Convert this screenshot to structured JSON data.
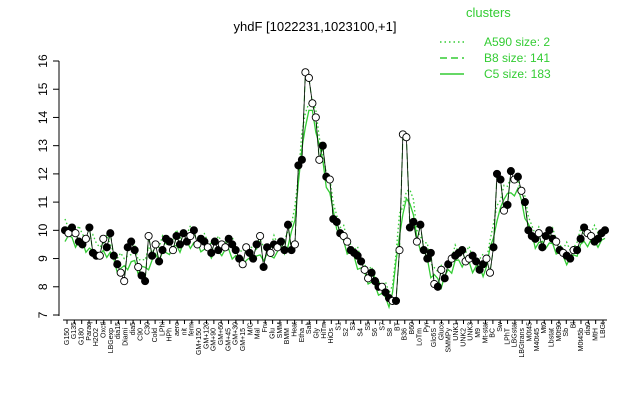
{
  "chart_data": {
    "type": "line",
    "title": "yhdF [1022231,1023100,+1]",
    "xlabel": "",
    "ylabel": "",
    "ylim": [
      7,
      16
    ],
    "yticks": [
      7,
      8,
      9,
      10,
      11,
      12,
      13,
      14,
      15,
      16
    ],
    "grid": false,
    "legend": {
      "title": "clusters",
      "position": "top-right",
      "color": "#33cc33",
      "entries": [
        {
          "label": "A590 size: 2",
          "style": "dotted"
        },
        {
          "label": "B8 size: 141",
          "style": "dashed"
        },
        {
          "label": "C5 size: 183",
          "style": "solid"
        }
      ]
    },
    "colors": {
      "cluster": "#33cc33",
      "points": "#000000"
    },
    "x_tick_labels": [
      "G150",
      "G135",
      "G180",
      "Paraq",
      "H2O2",
      "Oxctl",
      "LBGexp",
      "dia15",
      "Diami",
      "dia5",
      "C90",
      "C30",
      "Cold",
      "LPhi",
      "HPh",
      "aero",
      "nit",
      "ferm",
      "GM+150",
      "GM+120",
      "GM+90",
      "GM+60",
      "GM+45",
      "GM+30",
      "GM+15",
      "M/G",
      "Mal",
      "Fru",
      "Glu",
      "SMM",
      "BMM",
      "Heat",
      "Etha",
      "Salt",
      "Gly",
      "HiTm",
      "HiOs",
      "S1",
      "S2",
      "S3",
      "S4",
      "S5",
      "S6",
      "S7",
      "S8",
      "BT",
      "B36",
      "B60",
      "LoTm",
      "Pyr",
      "Glc6S",
      "Gluco",
      "SMMPy",
      "UNK1",
      "UNK2",
      "UNK3",
      "M9",
      "Mt-stat",
      "BC",
      "Sw",
      "LPhT",
      "LBGstat",
      "LBGtrans",
      "M0t45",
      "M40t45",
      "Mt0",
      "Lbstat",
      "M0t90",
      "Sb",
      "Bl",
      "M0t45b",
      "dia0",
      "MtH",
      "LBGt"
    ],
    "series": [
      {
        "name": "",
        "values": [
          10.0,
          9.9,
          10.1,
          9.9,
          9.6,
          9.5,
          9.7,
          10.1,
          9.2,
          9.1,
          9.1,
          9.7,
          9.4,
          9.9,
          9.1,
          8.8,
          8.5,
          8.2,
          9.4,
          9.6,
          9.3,
          8.7,
          8.4,
          8.2,
          9.8,
          9.1,
          9.5,
          8.9,
          9.3,
          9.7,
          9.6,
          9.3,
          9.8,
          9.5,
          9.9,
          9.6,
          9.8,
          10.0,
          9.5,
          9.7,
          9.6,
          9.4,
          9.2,
          9.6,
          9.3,
          9.5,
          9.4,
          9.7,
          9.5,
          9.3,
          9.0,
          8.8,
          9.4,
          9.2,
          9.0,
          9.5,
          9.8,
          8.7,
          9.4,
          9.2,
          9.5,
          9.4,
          9.6,
          9.3,
          10.2,
          9.3,
          9.5,
          12.3,
          12.5,
          15.6,
          15.4,
          14.5,
          14.0,
          12.5,
          13.0,
          11.9,
          11.8,
          10.4,
          10.3,
          9.9,
          9.8,
          9.6,
          9.3,
          9.2,
          9.1,
          8.9,
          8.6,
          8.3,
          8.5,
          8.2,
          8.0,
          8.0,
          7.8,
          7.6,
          7.5,
          7.5,
          9.3,
          13.4,
          13.3,
          10.1,
          10.3,
          9.6,
          10.2,
          9.3,
          9.0,
          9.2,
          8.1,
          8.0,
          8.6,
          8.3,
          8.8,
          9.0,
          9.1,
          9.2,
          9.3,
          8.9,
          9.0,
          9.1,
          8.9,
          8.6,
          8.8,
          9.0,
          8.5,
          9.4,
          12.0,
          11.8,
          10.7,
          10.9,
          12.1,
          11.8,
          11.9,
          11.4,
          11.0,
          10.0,
          9.8,
          9.7,
          9.9,
          9.4,
          9.8,
          10.0,
          9.7,
          9.6,
          9.3,
          9.2,
          9.1,
          9.0,
          9.3,
          9.3,
          9.7,
          10.1,
          9.9,
          9.8,
          9.6,
          9.7,
          9.9,
          10.0
        ]
      }
    ]
  }
}
